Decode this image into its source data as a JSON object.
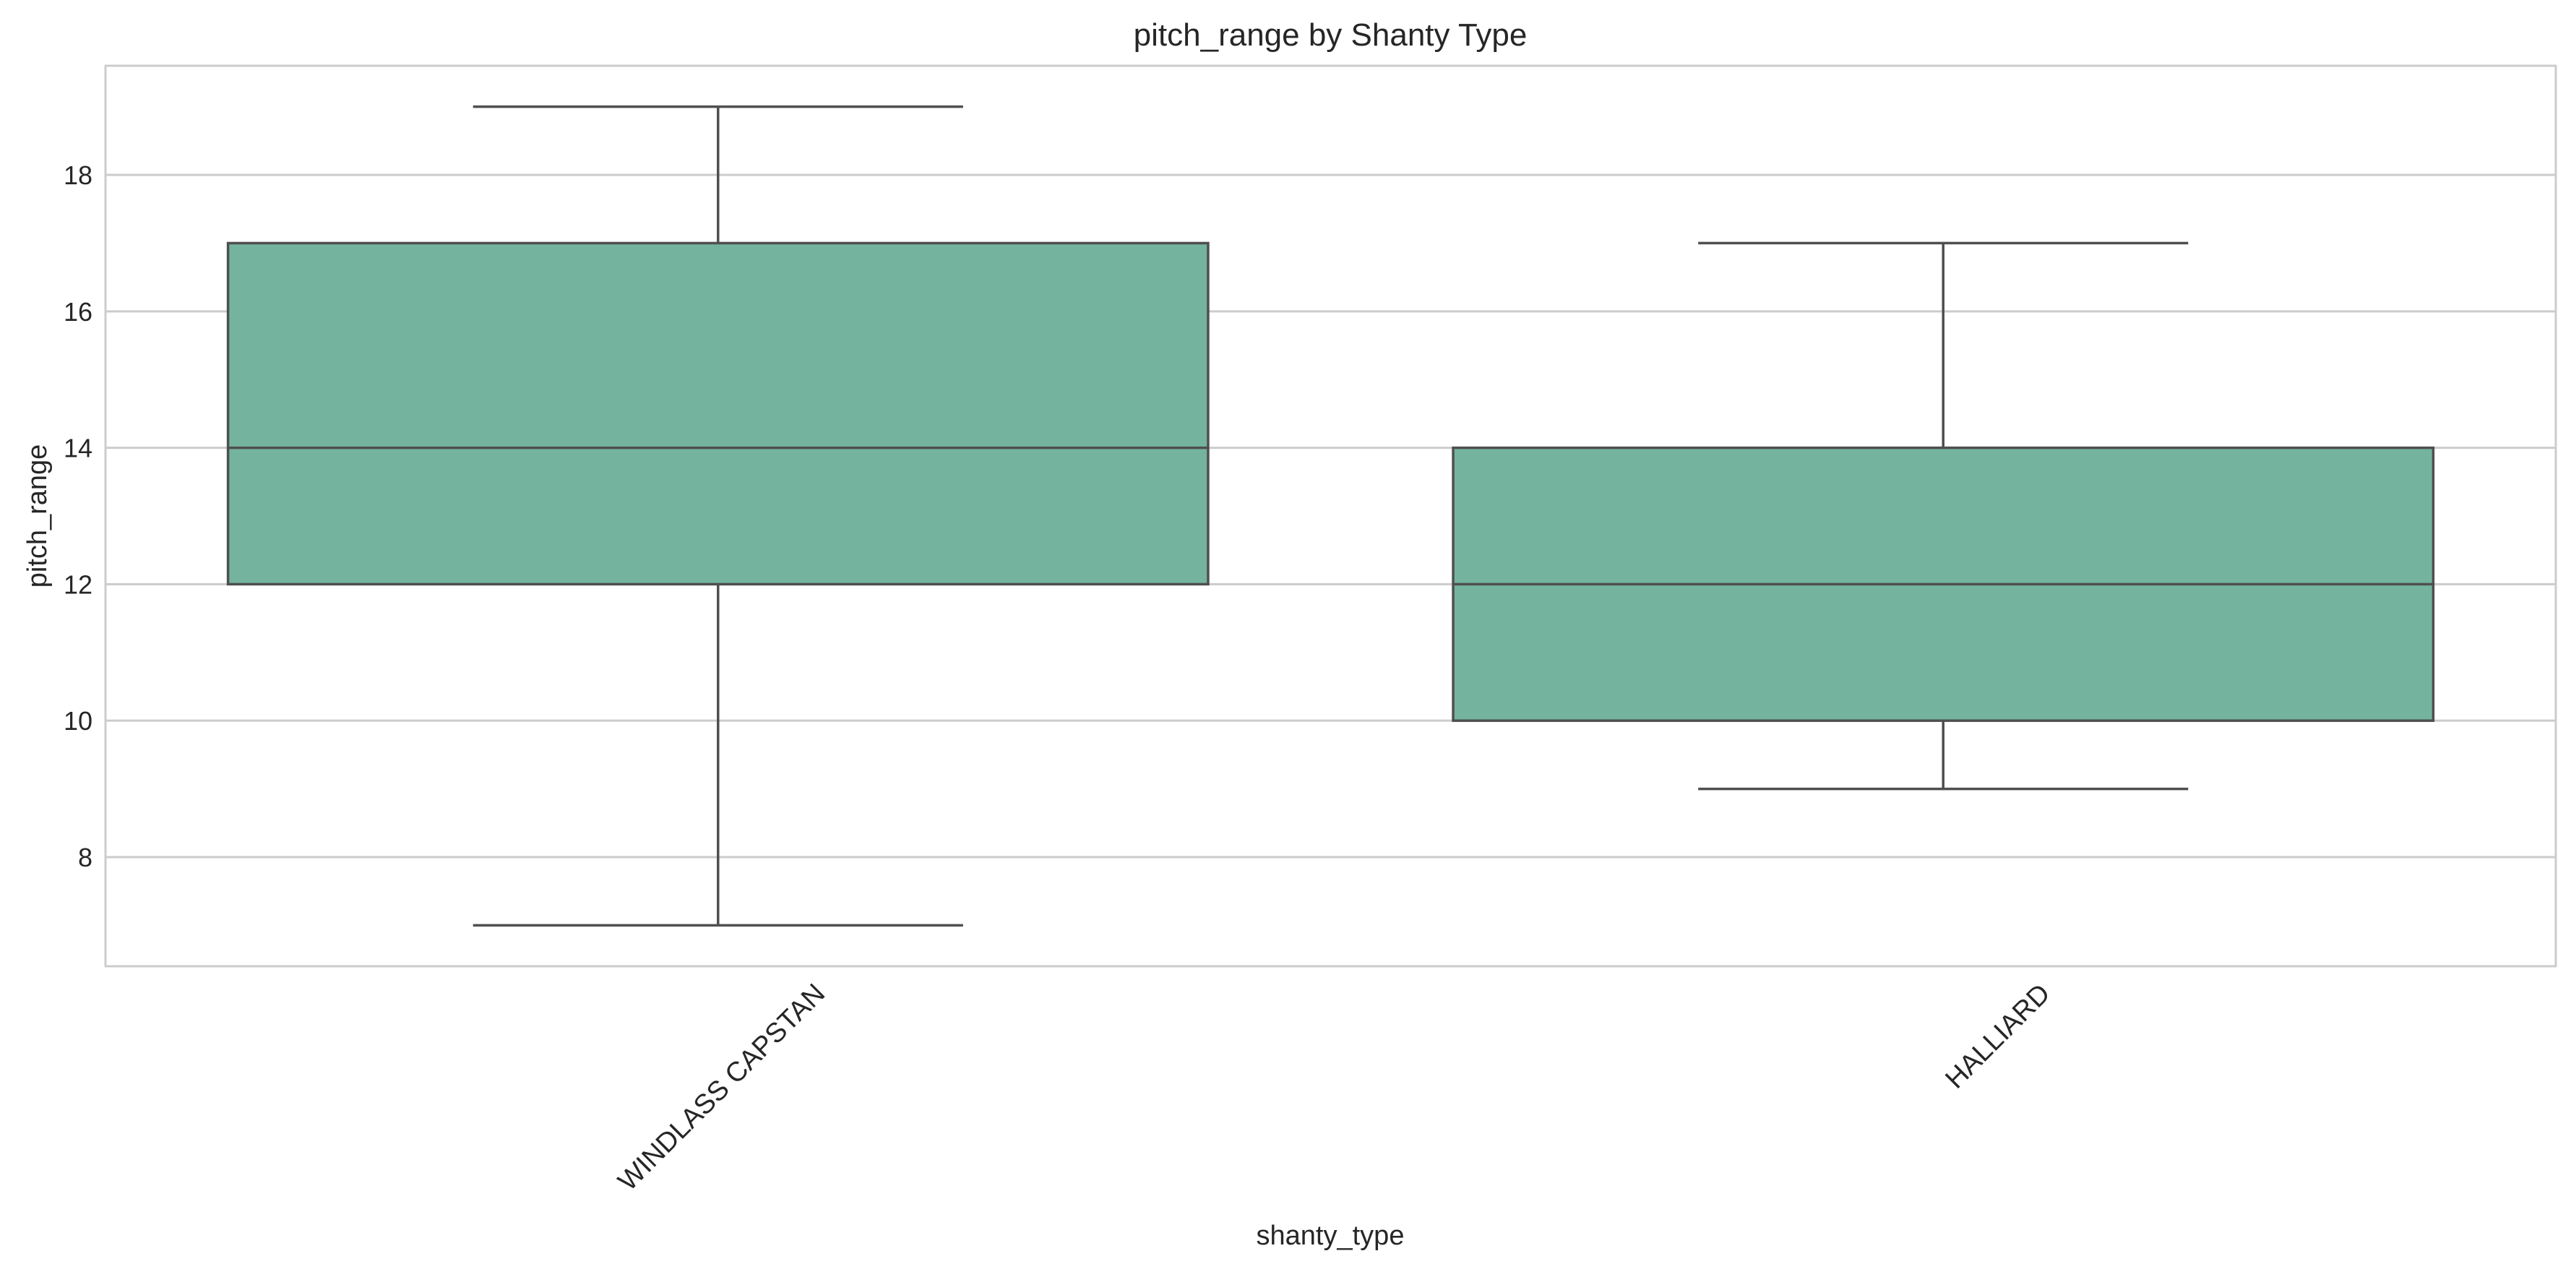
{
  "chart_data": {
    "type": "box",
    "title": "pitch_range by Shanty Type",
    "xlabel": "shanty_type",
    "ylabel": "pitch_range",
    "categories": [
      "WINDLASS CAPSTAN",
      "HALLIARD"
    ],
    "boxes": [
      {
        "category": "WINDLASS CAPSTAN",
        "whisker_low": 7,
        "q1": 12,
        "median": 14,
        "q3": 17,
        "whisker_high": 19
      },
      {
        "category": "HALLIARD",
        "whisker_low": 9,
        "q1": 10,
        "median": 12,
        "q3": 14,
        "whisker_high": 17
      }
    ],
    "ylim": [
      6.4,
      19.6
    ],
    "yticks": [
      8,
      10,
      12,
      14,
      16,
      18
    ],
    "grid": "horizontal",
    "legend": "none",
    "colors": {
      "box_fill": "#74b49f",
      "box_edge": "#4f4f4f",
      "grid": "#cccccc",
      "frame": "#cccccc",
      "text": "#262626"
    }
  }
}
